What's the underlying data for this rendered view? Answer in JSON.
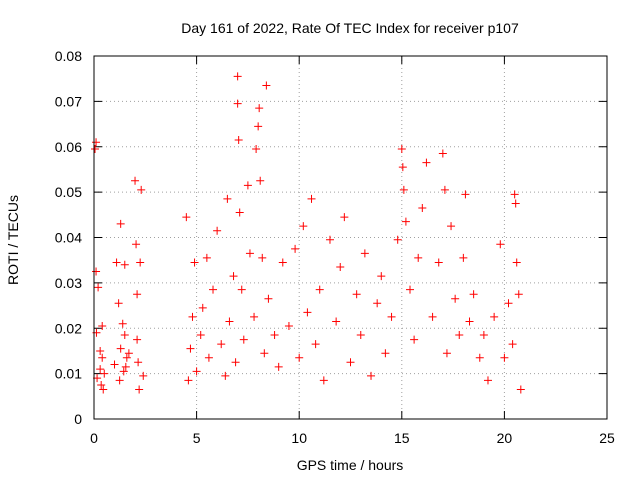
{
  "chart_data": {
    "type": "scatter",
    "title": "Day 161 of 2022, Rate Of TEC Index for receiver p107",
    "xlabel": "GPS time / hours",
    "ylabel": "ROTI / TECUs",
    "xlim": [
      0,
      25
    ],
    "ylim": [
      0,
      0.08
    ],
    "xticks": [
      0,
      5,
      10,
      15,
      20,
      25
    ],
    "yticks": [
      0,
      0.01,
      0.02,
      0.03,
      0.04,
      0.05,
      0.06,
      0.07,
      0.08
    ],
    "xtick_labels": [
      "0",
      "5",
      "10",
      "15",
      "20",
      "25"
    ],
    "ytick_labels": [
      "0",
      "0.01",
      "0.02",
      "0.03",
      "0.04",
      "0.05",
      "0.06",
      "0.07",
      "0.08"
    ],
    "grid": true,
    "marker": "+",
    "color": "#ff0000",
    "x": [
      0.05,
      0.1,
      0.1,
      0.12,
      0.15,
      0.2,
      0.3,
      0.3,
      0.35,
      0.4,
      0.4,
      0.45,
      0.5,
      1.0,
      1.1,
      1.2,
      1.25,
      1.3,
      1.3,
      1.4,
      1.45,
      1.5,
      1.5,
      1.55,
      1.6,
      1.7,
      2.0,
      2.05,
      2.1,
      2.1,
      2.15,
      2.2,
      2.25,
      2.3,
      2.4,
      4.5,
      4.6,
      4.7,
      4.8,
      4.9,
      5.0,
      5.2,
      5.3,
      5.5,
      5.6,
      5.8,
      6.0,
      6.2,
      6.4,
      6.5,
      6.6,
      6.8,
      6.9,
      7.0,
      7.0,
      7.05,
      7.1,
      7.2,
      7.3,
      7.5,
      7.6,
      7.8,
      7.9,
      8.0,
      8.05,
      8.1,
      8.2,
      8.3,
      8.4,
      8.5,
      8.8,
      9.0,
      9.2,
      9.5,
      9.8,
      10.0,
      10.2,
      10.4,
      10.6,
      10.8,
      11.0,
      11.2,
      11.5,
      11.8,
      12.0,
      12.2,
      12.5,
      12.8,
      13.0,
      13.2,
      13.5,
      13.8,
      14.0,
      14.2,
      14.5,
      14.8,
      15.0,
      15.05,
      15.1,
      15.2,
      15.4,
      15.6,
      15.8,
      16.0,
      16.2,
      16.5,
      16.8,
      17.0,
      17.1,
      17.2,
      17.4,
      17.6,
      17.8,
      18.0,
      18.1,
      18.3,
      18.5,
      18.8,
      19.0,
      19.2,
      19.5,
      19.8,
      20.0,
      20.2,
      20.4,
      20.5,
      20.55,
      20.6,
      20.7,
      20.8
    ],
    "y": [
      0.0595,
      0.061,
      0.0325,
      0.019,
      0.009,
      0.029,
      0.015,
      0.011,
      0.0075,
      0.0205,
      0.0135,
      0.0065,
      0.01,
      0.012,
      0.0345,
      0.0255,
      0.0085,
      0.043,
      0.0155,
      0.021,
      0.0105,
      0.034,
      0.0185,
      0.0115,
      0.0135,
      0.0145,
      0.0525,
      0.0385,
      0.0275,
      0.0175,
      0.0125,
      0.0065,
      0.0345,
      0.0505,
      0.0095,
      0.0445,
      0.0085,
      0.0155,
      0.0225,
      0.0345,
      0.0105,
      0.0185,
      0.0245,
      0.0355,
      0.0135,
      0.0285,
      0.0415,
      0.0165,
      0.0095,
      0.0485,
      0.0215,
      0.0315,
      0.0125,
      0.0755,
      0.0695,
      0.0615,
      0.0455,
      0.0285,
      0.0175,
      0.0515,
      0.0365,
      0.0225,
      0.0595,
      0.0645,
      0.0685,
      0.0525,
      0.0355,
      0.0145,
      0.0735,
      0.0265,
      0.0185,
      0.0115,
      0.0345,
      0.0205,
      0.0375,
      0.0135,
      0.0425,
      0.0235,
      0.0485,
      0.0165,
      0.0285,
      0.0085,
      0.0395,
      0.0215,
      0.0335,
      0.0445,
      0.0125,
      0.0275,
      0.0185,
      0.0365,
      0.0095,
      0.0255,
      0.0315,
      0.0145,
      0.0225,
      0.0395,
      0.0595,
      0.0555,
      0.0505,
      0.0435,
      0.0285,
      0.0175,
      0.0355,
      0.0465,
      0.0565,
      0.0225,
      0.0345,
      0.0585,
      0.0505,
      0.0145,
      0.0425,
      0.0265,
      0.0185,
      0.0355,
      0.0495,
      0.0215,
      0.0275,
      0.0135,
      0.0185,
      0.0085,
      0.0225,
      0.0385,
      0.0135,
      0.0255,
      0.0165,
      0.0495,
      0.0475,
      0.0345,
      0.0275,
      0.0065
    ]
  }
}
